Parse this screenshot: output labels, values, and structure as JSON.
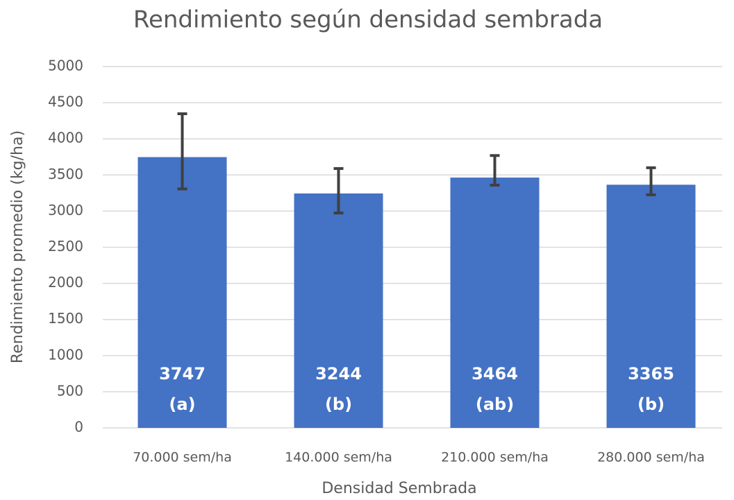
{
  "chart_data": {
    "type": "bar",
    "title": "Rendimiento según densidad sembrada",
    "x_label": "Densidad Sembrada",
    "y_label": "Rendimiento promedio (kg/ha)",
    "categories": [
      "70.000 sem/ha",
      "140.000 sem/ha",
      "210.000 sem/ha",
      "280.000 sem/ha"
    ],
    "values": [
      3747,
      3244,
      3464,
      3365
    ],
    "error_minus": [
      440,
      270,
      105,
      140
    ],
    "error_plus": [
      600,
      345,
      305,
      235
    ],
    "group_labels": [
      "(a)",
      "(b)",
      "(ab)",
      "(b)"
    ],
    "color": "#4472c4",
    "error_color": "#404040",
    "ylim": [
      0,
      5000
    ],
    "yticks": [
      0,
      500,
      1000,
      1500,
      2000,
      2500,
      3000,
      3500,
      4000,
      4500,
      5000
    ],
    "grid": true
  }
}
